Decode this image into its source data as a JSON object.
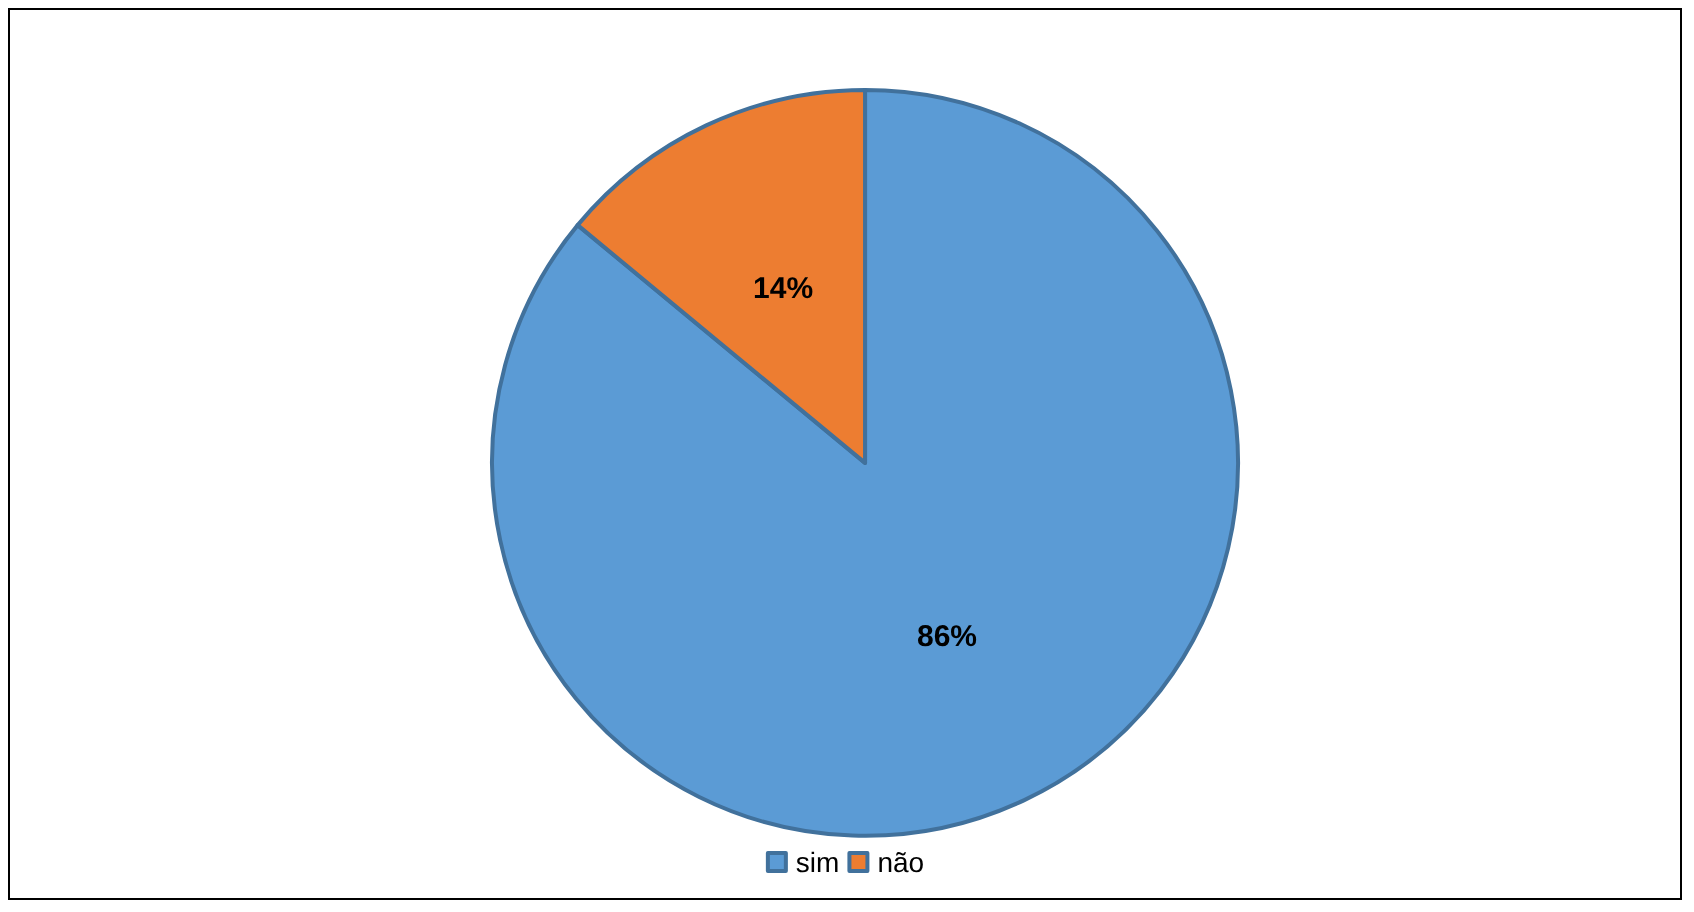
{
  "chart_data": {
    "type": "pie",
    "categories": [
      "sim",
      "não"
    ],
    "values": [
      86,
      14
    ],
    "colors": [
      "#5b9bd5",
      "#ed7d31"
    ],
    "value_labels": [
      "86%",
      "14%"
    ],
    "legend": "bottom"
  }
}
